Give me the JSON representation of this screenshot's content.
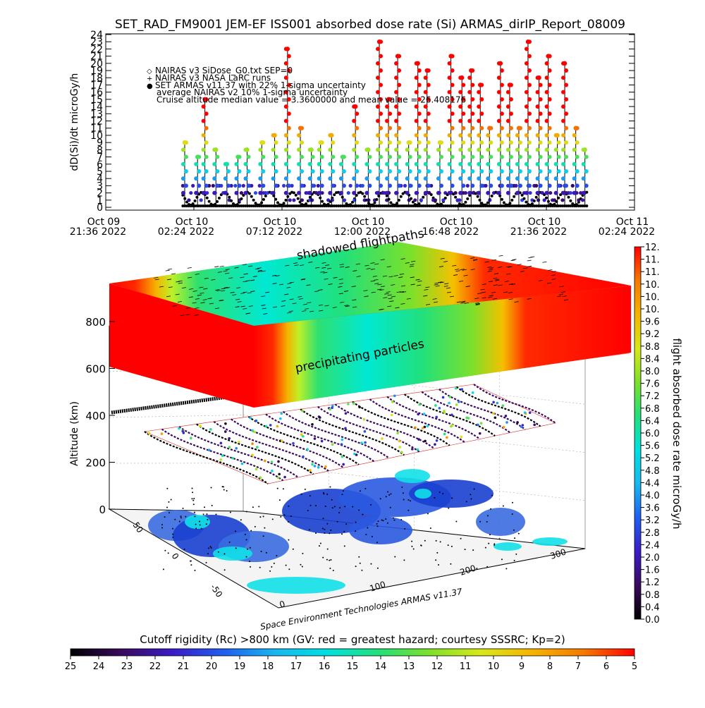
{
  "chart_data": [
    {
      "type": "scatter",
      "title": "SET_RAD_FM9001  JEM-EF ISS001 absorbed dose rate (Si) ARMAS_dirIP_Report_08009",
      "ylabel": "dD(Si)/dt microGy/h",
      "ylim": [
        0,
        24
      ],
      "yticks": [
        "0",
        "1",
        "2",
        "3",
        "4",
        "5",
        "6",
        "7",
        "8",
        "9",
        "10",
        "11",
        "12",
        "13",
        "14",
        "15",
        "16",
        "17",
        "18",
        "19",
        "20",
        "21",
        "22",
        "23",
        "24"
      ],
      "xticks": [
        {
          "date": "Oct 09",
          "time": "21:36  2022"
        },
        {
          "date": "Oct 10",
          "time": "02:24  2022"
        },
        {
          "date": "Oct 10",
          "time": "07:12  2022"
        },
        {
          "date": "Oct 10",
          "time": "12:00  2022"
        },
        {
          "date": "Oct 10",
          "time": "16:48  2022"
        },
        {
          "date": "Oct 10",
          "time": "21:36  2022"
        },
        {
          "date": "Oct 11",
          "time": "02:24  2022"
        }
      ],
      "legend": [
        {
          "marker": "◇",
          "text": "NAIRAS v3 SiDose_G0.txt SEP=0",
          "color": "#000000"
        },
        {
          "marker": "+",
          "text": "NAIRAS v3 NASA LaRC runs",
          "color": "#000000"
        },
        {
          "marker": "●",
          "text": "SET ARMAS v11.37 with 22% 1-sigma uncertainty",
          "color": "#1f3bd6"
        },
        {
          "marker": "",
          "text": "average NAIRAS v2 10% 1-sigma uncertainty",
          "color": "#000000"
        },
        {
          "marker": "",
          "text": "Cruise altitude median value = 3.3600000 and mean value = 26.408176",
          "color": "#000000"
        }
      ],
      "legend_position": "top-left",
      "series": [
        {
          "name": "SET ARMAS v11.37 with 22% 1-sigma uncertainty",
          "x_hours_from_first_tick": [
            4.3,
            5.0,
            5.4,
            6.0,
            6.6,
            7.2,
            7.7,
            8.5,
            9.2,
            9.9,
            10.6,
            11.2,
            11.7,
            12.3,
            12.9,
            13.6,
            14.3,
            14.9,
            15.4,
            15.9,
            16.5,
            17.0,
            17.5,
            18.2,
            18.8,
            19.4,
            19.9,
            20.4,
            20.9,
            21.5,
            22.0,
            22.5,
            23.0,
            23.6,
            24.1,
            24.6,
            25.0,
            25.6,
            26.1
          ],
          "values": [
            9,
            7,
            15,
            8,
            6,
            7,
            8,
            9,
            10,
            22,
            11,
            8,
            9,
            10,
            7,
            14,
            8,
            23,
            15,
            21,
            9,
            20,
            19,
            9,
            21,
            18,
            19,
            17,
            11,
            20,
            17,
            11,
            23,
            18,
            21,
            10,
            20,
            11,
            8
          ]
        },
        {
          "name": "NAIRAS v3 SiDose_G0.txt SEP=0",
          "values": [
            1.2,
            1.8,
            1.5,
            2.0,
            1.6,
            1.3,
            1.9,
            2.1,
            1.4,
            1.7,
            1.5,
            1.8
          ]
        }
      ],
      "xlabel": ""
    },
    {
      "type": "surface3d",
      "zlabel": "Altitude (km)",
      "zticks": [
        "0",
        "200",
        "400",
        "600",
        "800"
      ],
      "longitude_ticks": [
        "0",
        "100",
        "200",
        "300"
      ],
      "latitude_ticks": [
        "-50",
        "0",
        "50"
      ],
      "annotations": [
        "shadowed flightpaths",
        "precipitating particles"
      ],
      "credit": "Space Environment Technologies ARMAS v11.37"
    },
    {
      "type": "colorbar",
      "label": "flight absorbed dose rate microGy/h",
      "ticks": [
        "0.0",
        "0.4",
        "0.8",
        "1.2",
        "1.6",
        "2.0",
        "2.4",
        "2.8",
        "3.2",
        "3.6",
        "4.0",
        "4.4",
        "4.8",
        "5.2",
        "5.6",
        "6.0",
        "6.4",
        "6.8",
        "7.2",
        "7.6",
        "8.0",
        "8.4",
        "8.8",
        "9.2",
        "9.6",
        "10.",
        "10.",
        "10.",
        "11.",
        "11.",
        "12."
      ],
      "range": [
        0,
        12
      ]
    },
    {
      "type": "colorbar",
      "label": "Cutoff rigidity (Rc) >800 km (GV: red = greatest hazard; courtesy SSSRC; Kp=2)",
      "ticks": [
        "25",
        "24",
        "23",
        "22",
        "21",
        "20",
        "19",
        "18",
        "17",
        "16",
        "15",
        "14",
        "13",
        "12",
        "11",
        "10",
        "9",
        "8",
        "7",
        "6",
        "5"
      ],
      "range": [
        25,
        5
      ]
    }
  ],
  "colors": {
    "colormap": [
      "#000000",
      "#3a0a5e",
      "#3a1cc8",
      "#1f5ff0",
      "#18b8f0",
      "#00e0e0",
      "#22e07a",
      "#7de02a",
      "#d7e81a",
      "#f5b400",
      "#f57a00",
      "#ff0000"
    ]
  }
}
